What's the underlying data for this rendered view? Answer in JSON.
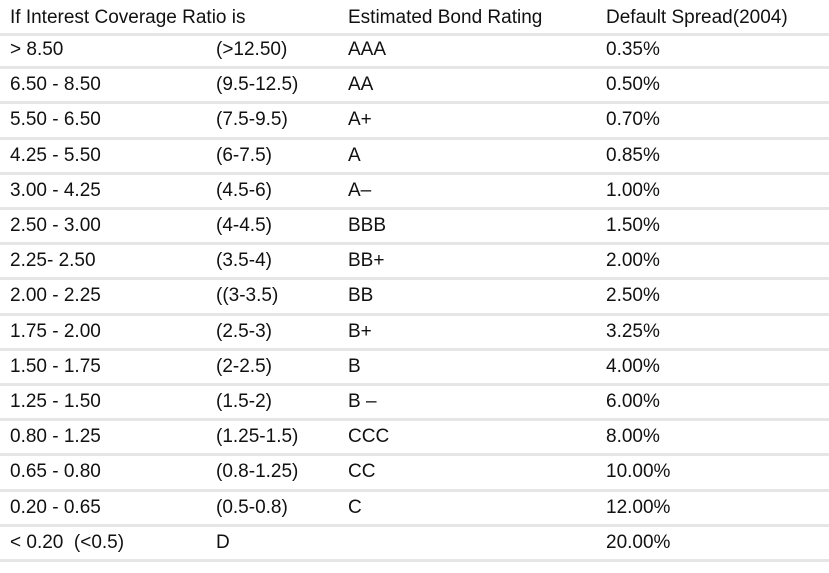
{
  "table": {
    "header": {
      "coverage": "If Interest Coverage Ratio is",
      "rating": "Estimated Bond Rating",
      "spread": "Default Spread(2004)"
    },
    "rows": [
      {
        "coverage": "> 8.50",
        "range": "(>12.50)",
        "rating": "AAA",
        "spread": "0.35%"
      },
      {
        "coverage": "6.50 - 8.50",
        "range": "(9.5-12.5)",
        "rating": "AA",
        "spread": "0.50%"
      },
      {
        "coverage": "5.50 - 6.50",
        "range": "(7.5-9.5)",
        "rating": "A+",
        "spread": "0.70%"
      },
      {
        "coverage": "4.25 - 5.50",
        "range": "(6-7.5)",
        "rating": "A",
        "spread": "0.85%"
      },
      {
        "coverage": "3.00 - 4.25",
        "range": "(4.5-6)",
        "rating": "A–",
        "spread": "1.00%"
      },
      {
        "coverage": "2.50 - 3.00",
        "range": "(4-4.5)",
        "rating": "BBB",
        "spread": "1.50%"
      },
      {
        "coverage": "2.25- 2.50",
        "range": "(3.5-4)",
        "rating": "BB+",
        "spread": "2.00%"
      },
      {
        "coverage": "2.00 - 2.25",
        "range": "((3-3.5)",
        "rating": "BB",
        "spread": "2.50%"
      },
      {
        "coverage": "1.75 - 2.00",
        "range": "(2.5-3)",
        "rating": "B+",
        "spread": "3.25%"
      },
      {
        "coverage": "1.50 - 1.75",
        "range": "(2-2.5)",
        "rating": "B",
        "spread": "4.00%"
      },
      {
        "coverage": "1.25 - 1.50",
        "range": "(1.5-2)",
        "rating": "B –",
        "spread": "6.00%"
      },
      {
        "coverage": "0.80 - 1.25",
        "range": "(1.25-1.5)",
        "rating": "CCC",
        "spread": "8.00%"
      },
      {
        "coverage": "0.65 - 0.80",
        "range": "(0.8-1.25)",
        "rating": "CC",
        "spread": "10.00%"
      },
      {
        "coverage": "0.20 - 0.65",
        "range": "(0.5-0.8)",
        "rating": "C",
        "spread": "12.00%"
      },
      {
        "coverage": "< 0.20  (<0.5)",
        "range": "D",
        "spread": "20.00%"
      }
    ]
  }
}
